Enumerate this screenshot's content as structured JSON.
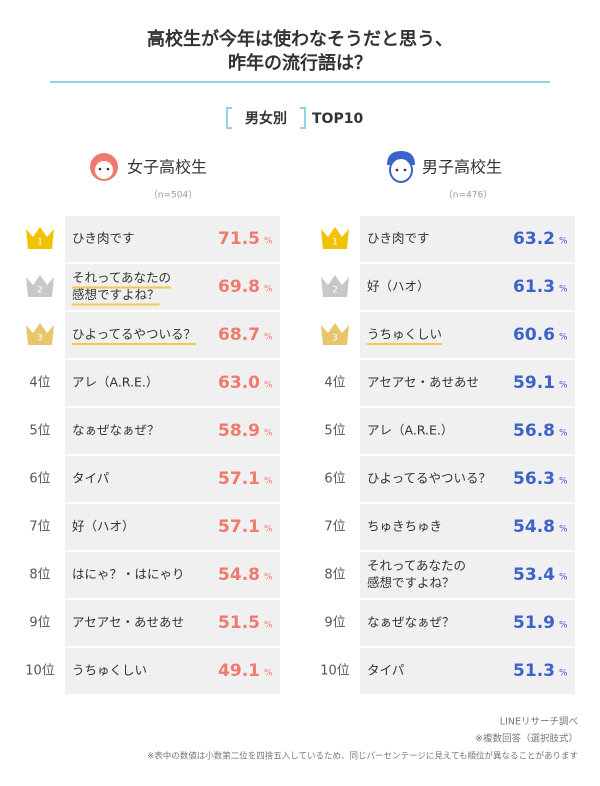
{
  "title": [
    "高校生が今年は使わなそうだと思う、",
    "昨年の流行語は？"
  ],
  "subtitle": {
    "group": "男女別",
    "rest": "TOP10"
  },
  "unit": "%",
  "columns": [
    {
      "heading": "女子高校生",
      "n": "（n=504）",
      "color": "#f07a6e",
      "items": [
        {
          "rank": "1",
          "label": [
            "ひき肉です"
          ],
          "value": "71.5"
        },
        {
          "rank": "2",
          "label": [
            "それってあなたの",
            "感想ですよね？"
          ],
          "value": "69.8",
          "highlight": true
        },
        {
          "rank": "3",
          "label": [
            "ひよってるやついる？"
          ],
          "value": "68.7",
          "highlight": true
        },
        {
          "rank": "4位",
          "label": [
            "アレ（A.R.E.）"
          ],
          "value": "63.0"
        },
        {
          "rank": "5位",
          "label": [
            "なぁぜなぁぜ？"
          ],
          "value": "58.9"
        },
        {
          "rank": "6位",
          "label": [
            "タイパ"
          ],
          "value": "57.1"
        },
        {
          "rank": "7位",
          "label": [
            "好（ハオ）"
          ],
          "value": "57.1"
        },
        {
          "rank": "8位",
          "label": [
            "はにゃ？・はにゃり"
          ],
          "value": "54.8"
        },
        {
          "rank": "9位",
          "label": [
            "アセアセ・あせあせ"
          ],
          "value": "51.5"
        },
        {
          "rank": "10位",
          "label": [
            "うちゅくしい"
          ],
          "value": "49.1"
        }
      ]
    },
    {
      "heading": "男子高校生",
      "n": "（n=476）",
      "color": "#3b63c9",
      "items": [
        {
          "rank": "1",
          "label": [
            "ひき肉です"
          ],
          "value": "63.2"
        },
        {
          "rank": "2",
          "label": [
            "好（ハオ）"
          ],
          "value": "61.3"
        },
        {
          "rank": "3",
          "label": [
            "うちゅくしい"
          ],
          "value": "60.6",
          "highlight": true
        },
        {
          "rank": "4位",
          "label": [
            "アセアセ・あせあせ"
          ],
          "value": "59.1"
        },
        {
          "rank": "5位",
          "label": [
            "アレ（A.R.E.）"
          ],
          "value": "56.8"
        },
        {
          "rank": "6位",
          "label": [
            "ひよってるやついる？"
          ],
          "value": "56.3"
        },
        {
          "rank": "7位",
          "label": [
            "ちゅきちゅき"
          ],
          "value": "54.8"
        },
        {
          "rank": "8位",
          "label": [
            "それってあなたの",
            "感想ですよね？"
          ],
          "value": "53.4"
        },
        {
          "rank": "9位",
          "label": [
            "なぁぜなぁぜ？"
          ],
          "value": "51.9"
        },
        {
          "rank": "10位",
          "label": [
            "タイパ"
          ],
          "value": "51.3"
        }
      ]
    }
  ],
  "notes": [
    "LINEリサーチ調べ",
    "※複数回答（選択肢式）",
    "※表中の数値は小数第二位を四捨五入しているため、同じパーセンテージに見えても順位が異なることがあります"
  ]
}
